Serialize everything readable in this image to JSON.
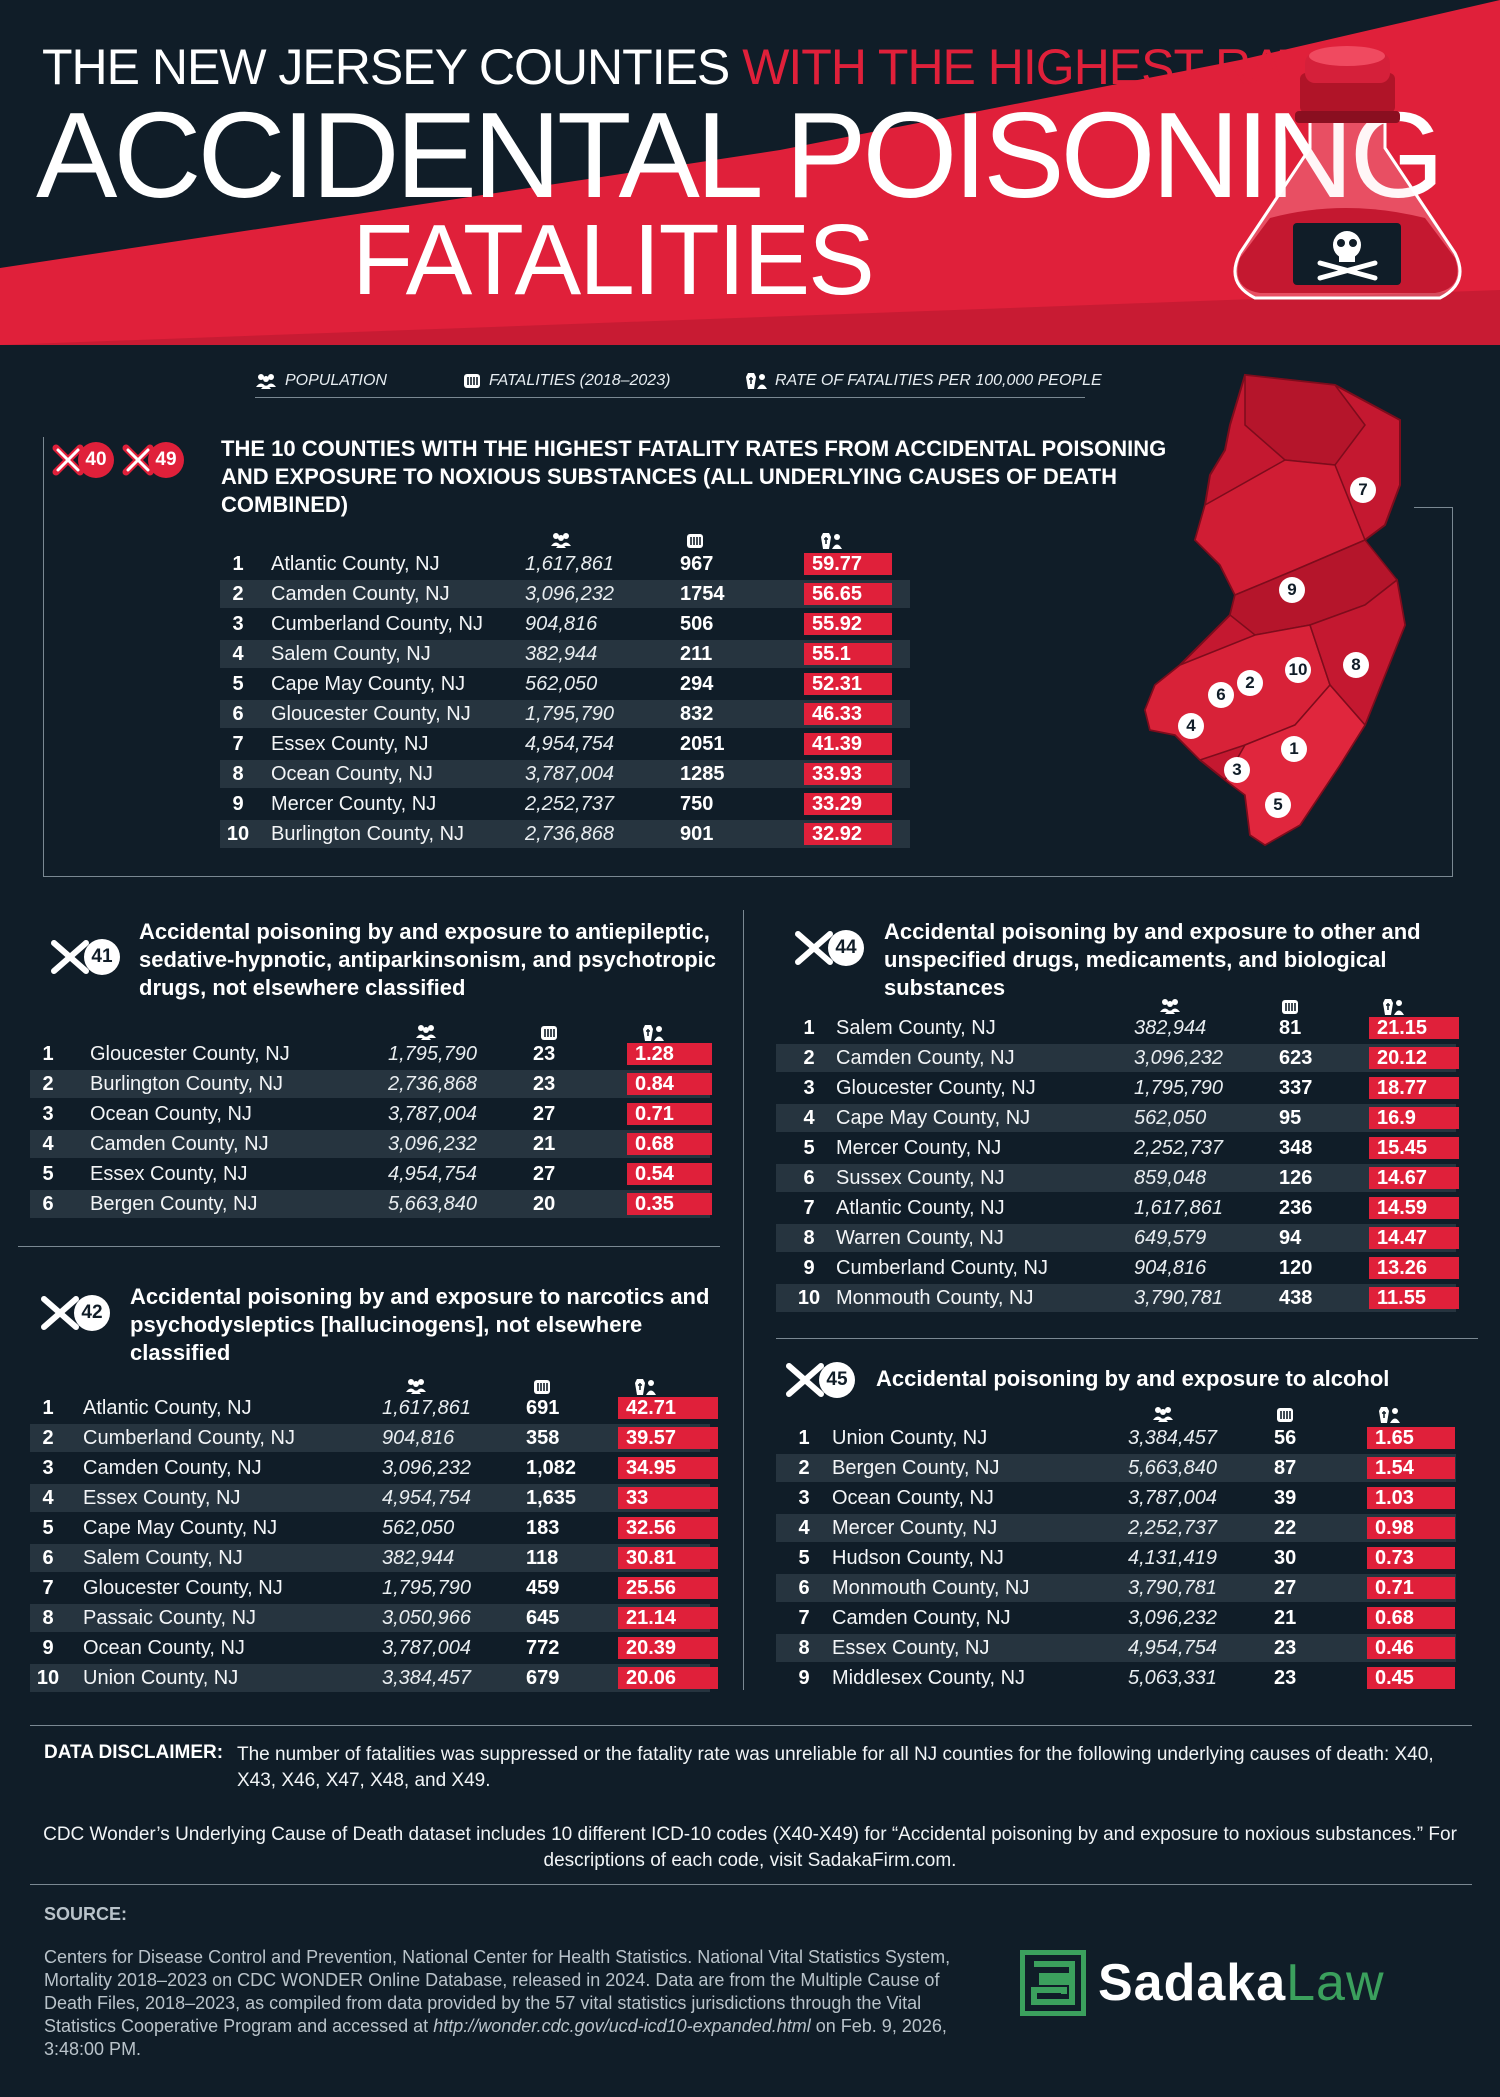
{
  "header": {
    "line1_white": "THE NEW JERSEY COUNTIES",
    "line1_red": "WITH THE HIGHEST RATE OF",
    "line2": "ACCIDENTAL POISONING",
    "line3": "FATALITIES",
    "flask_icon": "skull-crossbones-flask-icon"
  },
  "colors": {
    "background": "#101d28",
    "accent_red": "#e0203a",
    "row_alt": "#26343f",
    "brand_green": "#3ba05d"
  },
  "legend": {
    "population": "POPULATION",
    "fatalities": "FATALITIES (2018–2023)",
    "rate": "RATE OF FATALITIES PER 100,000 PEOPLE"
  },
  "main": {
    "badges": [
      "40",
      "49"
    ],
    "title": "THE 10 COUNTIES WITH THE HIGHEST FATALITY RATES FROM ACCIDENTAL POISONING AND EXPOSURE TO NOXIOUS SUBSTANCES (ALL UNDERLYING CAUSES OF DEATH COMBINED)",
    "rows": [
      [
        "1",
        "Atlantic County, NJ",
        "1,617,861",
        "967",
        "59.77"
      ],
      [
        "2",
        "Camden County, NJ",
        "3,096,232",
        "1754",
        "56.65"
      ],
      [
        "3",
        "Cumberland County, NJ",
        "904,816",
        "506",
        "55.92"
      ],
      [
        "4",
        "Salem County, NJ",
        "382,944",
        "211",
        "55.1"
      ],
      [
        "5",
        "Cape May County, NJ",
        "562,050",
        "294",
        "52.31"
      ],
      [
        "6",
        "Gloucester County, NJ",
        "1,795,790",
        "832",
        "46.33"
      ],
      [
        "7",
        "Essex County, NJ",
        "4,954,754",
        "2051",
        "41.39"
      ],
      [
        "8",
        "Ocean County, NJ",
        "3,787,004",
        "1285",
        "33.93"
      ],
      [
        "9",
        "Mercer County, NJ",
        "2,252,737",
        "750",
        "33.29"
      ],
      [
        "10",
        "Burlington County, NJ",
        "2,736,868",
        "901",
        "32.92"
      ]
    ],
    "map_labels": [
      "7",
      "9",
      "2",
      "6",
      "10",
      "8",
      "4",
      "1",
      "3",
      "5"
    ]
  },
  "x41": {
    "badge": "41",
    "title": "Accidental poisoning by and exposure to antiepileptic, sedative-hypnotic, antiparkinsonism, and psychotropic drugs, not elsewhere classified",
    "rows": [
      [
        "1",
        "Gloucester County, NJ",
        "1,795,790",
        "23",
        "1.28"
      ],
      [
        "2",
        "Burlington County, NJ",
        "2,736,868",
        "23",
        "0.84"
      ],
      [
        "3",
        "Ocean County, NJ",
        "3,787,004",
        "27",
        "0.71"
      ],
      [
        "4",
        "Camden County, NJ",
        "3,096,232",
        "21",
        "0.68"
      ],
      [
        "5",
        "Essex County, NJ",
        "4,954,754",
        "27",
        "0.54"
      ],
      [
        "6",
        "Bergen County, NJ",
        "5,663,840",
        "20",
        "0.35"
      ]
    ]
  },
  "x42": {
    "badge": "42",
    "title": "Accidental poisoning by and exposure to narcotics and psychodysleptics [hallucinogens], not elsewhere classified",
    "rows": [
      [
        "1",
        "Atlantic County, NJ",
        "1,617,861",
        "691",
        "42.71"
      ],
      [
        "2",
        "Cumberland County, NJ",
        "904,816",
        "358",
        "39.57"
      ],
      [
        "3",
        "Camden County, NJ",
        "3,096,232",
        "1,082",
        "34.95"
      ],
      [
        "4",
        "Essex County, NJ",
        "4,954,754",
        "1,635",
        "33"
      ],
      [
        "5",
        "Cape May County, NJ",
        "562,050",
        "183",
        "32.56"
      ],
      [
        "6",
        "Salem County, NJ",
        "382,944",
        "118",
        "30.81"
      ],
      [
        "7",
        "Gloucester County, NJ",
        "1,795,790",
        "459",
        "25.56"
      ],
      [
        "8",
        "Passaic County, NJ",
        "3,050,966",
        "645",
        "21.14"
      ],
      [
        "9",
        "Ocean County, NJ",
        "3,787,004",
        "772",
        "20.39"
      ],
      [
        "10",
        "Union County, NJ",
        "3,384,457",
        "679",
        "20.06"
      ]
    ]
  },
  "x44": {
    "badge": "44",
    "title": "Accidental poisoning by and exposure to other and unspecified drugs, medicaments, and biological substances",
    "rows": [
      [
        "1",
        "Salem County, NJ",
        "382,944",
        "81",
        "21.15"
      ],
      [
        "2",
        "Camden County, NJ",
        "3,096,232",
        "623",
        "20.12"
      ],
      [
        "3",
        "Gloucester County, NJ",
        "1,795,790",
        "337",
        "18.77"
      ],
      [
        "4",
        "Cape May County, NJ",
        "562,050",
        "95",
        "16.9"
      ],
      [
        "5",
        "Mercer County, NJ",
        "2,252,737",
        "348",
        "15.45"
      ],
      [
        "6",
        "Sussex County, NJ",
        "859,048",
        "126",
        "14.67"
      ],
      [
        "7",
        "Atlantic County, NJ",
        "1,617,861",
        "236",
        "14.59"
      ],
      [
        "8",
        "Warren County, NJ",
        "649,579",
        "94",
        "14.47"
      ],
      [
        "9",
        "Cumberland County, NJ",
        "904,816",
        "120",
        "13.26"
      ],
      [
        "10",
        "Monmouth County, NJ",
        "3,790,781",
        "438",
        "11.55"
      ]
    ]
  },
  "x45": {
    "badge": "45",
    "title": "Accidental poisoning by and exposure to alcohol",
    "rows": [
      [
        "1",
        "Union County, NJ",
        "3,384,457",
        "56",
        "1.65"
      ],
      [
        "2",
        "Bergen County, NJ",
        "5,663,840",
        "87",
        "1.54"
      ],
      [
        "3",
        "Ocean County, NJ",
        "3,787,004",
        "39",
        "1.03"
      ],
      [
        "4",
        "Mercer County, NJ",
        "2,252,737",
        "22",
        "0.98"
      ],
      [
        "5",
        "Hudson County, NJ",
        "4,131,419",
        "30",
        "0.73"
      ],
      [
        "6",
        "Monmouth County, NJ",
        "3,790,781",
        "27",
        "0.71"
      ],
      [
        "7",
        "Camden County, NJ",
        "3,096,232",
        "21",
        "0.68"
      ],
      [
        "8",
        "Essex County, NJ",
        "4,954,754",
        "23",
        "0.46"
      ],
      [
        "9",
        "Middlesex County, NJ",
        "5,063,331",
        "23",
        "0.45"
      ]
    ]
  },
  "footer": {
    "disclaimer_label": "DATA DISCLAIMER:",
    "disclaimer_text": "The number of fatalities was suppressed or the fatality rate was unreliable for all NJ counties for the following underlying causes of death: X40, X43, X46, X47, X48, and X49.",
    "cdc_note": "CDC Wonder’s Underlying Cause of Death dataset includes 10 different ICD-10 codes (X40-X49) for “Accidental poisoning by and exposure to noxious substances.” For descriptions of each code, visit SadakaFirm.com.",
    "source_label": "SOURCE:",
    "source_text_1": "Centers for Disease Control and Prevention, National Center for Health Statistics. National Vital Statistics System, Mortality 2018–2023 on CDC WONDER Online Database, released in 2024. Data are from the Multiple Cause of Death Files, 2018–2023, as compiled from data provided by the 57 vital statistics jurisdictions through the Vital Statistics Cooperative Program and accessed at ",
    "source_url": "http://wonder.cdc.gov/ucd-icd10-expanded.html",
    "source_text_2": " on Feb. 9, 2026, 3:48:00 PM.",
    "logo_part1": "Sadaka",
    "logo_part2": "Law"
  }
}
